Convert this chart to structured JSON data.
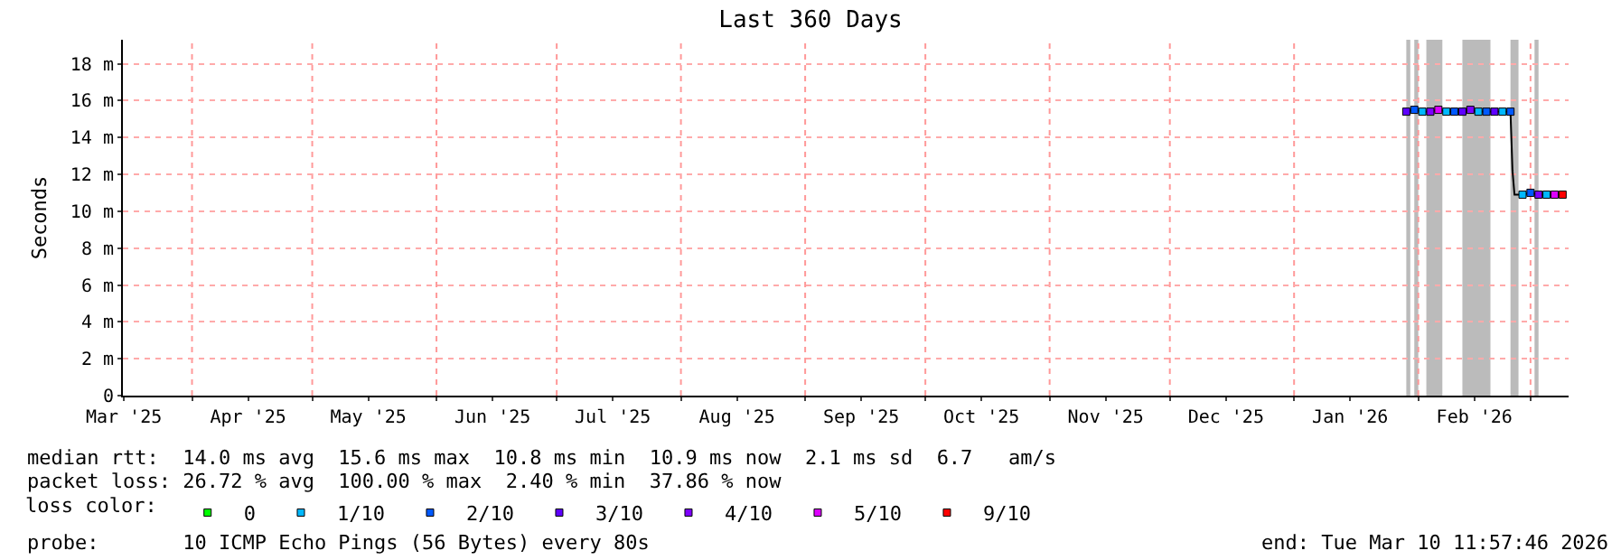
{
  "chart_data": {
    "type": "line",
    "title": "Last 360 Days",
    "ylabel": "Seconds",
    "xlim": [
      "2025-03-14T18:00",
      "2026-03-10T12:00"
    ],
    "ylim": [
      0,
      19.3
    ],
    "yticks": [
      0,
      {
        "value": 2,
        "label": "2 m"
      },
      {
        "value": 4,
        "label": "4 m"
      },
      {
        "value": 6,
        "label": "6 m"
      },
      {
        "value": 8,
        "label": "8 m"
      },
      {
        "value": 10,
        "label": "10 m"
      },
      {
        "value": 12,
        "label": "12 m"
      },
      {
        "value": 14,
        "label": "14 m"
      },
      {
        "value": 16,
        "label": "16 m"
      },
      {
        "value": 18,
        "label": "18 m"
      }
    ],
    "xticks": [
      {
        "value": "2025-03-15",
        "label": "Mar '25"
      },
      {
        "value": "2025-04-01",
        "label": null
      },
      {
        "value": "2025-04-15",
        "label": "Apr '25"
      },
      {
        "value": "2025-05-01",
        "label": null
      },
      {
        "value": "2025-05-15",
        "label": "May '25"
      },
      {
        "value": "2025-06-01",
        "label": null
      },
      {
        "value": "2025-06-15",
        "label": "Jun '25"
      },
      {
        "value": "2025-07-01",
        "label": null
      },
      {
        "value": "2025-07-15",
        "label": "Jul '25"
      },
      {
        "value": "2025-08-01",
        "label": null
      },
      {
        "value": "2025-08-15",
        "label": "Aug '25"
      },
      {
        "value": "2025-09-01",
        "label": null
      },
      {
        "value": "2025-09-15",
        "label": "Sep '25"
      },
      {
        "value": "2025-10-01",
        "label": null
      },
      {
        "value": "2025-10-15",
        "label": "Oct '25"
      },
      {
        "value": "2025-11-01",
        "label": null
      },
      {
        "value": "2025-11-15",
        "label": "Nov '25"
      },
      {
        "value": "2025-12-01",
        "label": null
      },
      {
        "value": "2025-12-15",
        "label": "Dec '25"
      },
      {
        "value": "2026-01-01",
        "label": null
      },
      {
        "value": "2026-01-15",
        "label": "Jan '26"
      },
      {
        "value": "2026-02-01",
        "label": null
      },
      {
        "value": "2026-02-15",
        "label": "Feb '26"
      },
      {
        "value": "2026-03-01",
        "label": null
      }
    ],
    "grid": true,
    "legend": "bottom",
    "legend_title": "loss color:",
    "series": [
      {
        "color": "#000000",
        "marker": "none",
        "x": [
          "2026-01-29",
          "2026-01-31",
          "2026-02-02",
          "2026-02-04",
          "2026-02-06",
          "2026-02-08",
          "2026-02-10",
          "2026-02-12",
          "2026-02-14",
          "2026-02-16",
          "2026-02-18",
          "2026-02-20",
          "2026-02-22",
          "2026-02-24",
          "2026-02-24T12:00",
          "2026-02-25",
          "2026-02-27",
          "2026-03-01",
          "2026-03-03",
          "2026-03-05",
          "2026-03-07",
          "2026-03-09"
        ],
        "values": [
          15.4,
          15.5,
          15.4,
          15.4,
          15.5,
          15.4,
          15.4,
          15.4,
          15.5,
          15.4,
          15.4,
          15.4,
          15.4,
          15.4,
          12.2,
          10.9,
          10.9,
          11.0,
          10.9,
          10.9,
          10.9,
          10.9
        ]
      },
      {
        "type": "scatter",
        "name": "0",
        "color": "#00ff00",
        "marker": "square"
      },
      {
        "type": "scatter",
        "name": "1/10",
        "color": "#00b8ff",
        "marker": "square",
        "x": [
          "2026-02-02",
          "2026-02-08",
          "2026-02-16",
          "2026-02-22",
          "2026-02-27",
          "2026-03-05"
        ],
        "values": [
          15.4,
          15.4,
          15.4,
          15.4,
          10.9,
          10.9
        ]
      },
      {
        "type": "scatter",
        "name": "2/10",
        "color": "#0059ff",
        "marker": "square",
        "x": [
          "2026-01-31",
          "2026-02-10",
          "2026-02-18",
          "2026-02-24",
          "2026-03-01"
        ],
        "values": [
          15.5,
          15.4,
          15.4,
          15.4,
          11.0
        ]
      },
      {
        "type": "scatter",
        "name": "3/10",
        "color": "#5e00ff",
        "marker": "square",
        "x": [
          "2026-01-29",
          "2026-02-12",
          "2026-02-20"
        ],
        "values": [
          15.4,
          15.4,
          15.4
        ]
      },
      {
        "type": "scatter",
        "name": "4/10",
        "color": "#7e00ff",
        "marker": "square",
        "x": [
          "2026-02-04",
          "2026-02-14",
          "2026-03-03"
        ],
        "values": [
          15.4,
          15.5,
          10.9
        ]
      },
      {
        "type": "scatter",
        "name": "5/10",
        "color": "#dd00ff",
        "marker": "square",
        "x": [
          "2026-02-06",
          "2026-03-07"
        ],
        "values": [
          15.5,
          10.9
        ]
      },
      {
        "type": "scatter",
        "name": "9/10",
        "color": "#ff0000",
        "marker": "square",
        "x": [
          "2026-03-09"
        ],
        "values": [
          10.9
        ]
      }
    ],
    "bands": [
      {
        "axis": "x",
        "from": "2026-01-29",
        "to": "2026-01-30",
        "color": "#bbbbbb"
      },
      {
        "axis": "x",
        "from": "2026-01-31",
        "to": "2026-02-01",
        "color": "#bbbbbb"
      },
      {
        "axis": "x",
        "from": "2026-02-03",
        "to": "2026-02-07",
        "color": "#bbbbbb"
      },
      {
        "axis": "x",
        "from": "2026-02-12",
        "to": "2026-02-19",
        "color": "#bbbbbb"
      },
      {
        "axis": "x",
        "from": "2026-02-24",
        "to": "2026-02-26",
        "color": "#bbbbbb"
      },
      {
        "axis": "x",
        "from": "2026-03-02",
        "to": "2026-03-03",
        "color": "#bbbbbb"
      }
    ],
    "annotations": [
      "median rtt:  14.0 ms avg  15.6 ms max  10.8 ms min  10.9 ms now  2.1 ms sd  6.7   am/s",
      "packet loss: 26.72 % avg  100.00 % max  2.40 % min  37.86 % now",
      "probe:       10 ICMP Echo Pings (56 Bytes) every 80s",
      "end: Tue Mar 10 11:57:46 2026"
    ]
  }
}
